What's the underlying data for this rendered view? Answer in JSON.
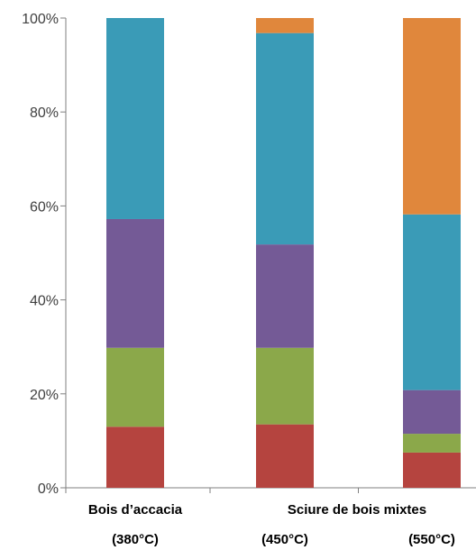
{
  "chart_data": {
    "type": "bar",
    "stacked": true,
    "ylim": [
      0,
      100
    ],
    "yticks": [
      "0%",
      "20%",
      "40%",
      "60%",
      "80%",
      "100%"
    ],
    "grid": false,
    "legend": "none",
    "category_labels_line1": [
      "Bois d’accacia",
      "",
      "Sciure de bois mixtes"
    ],
    "category_labels_line2": [
      "(380°C)",
      "(450°C)",
      "(550°C)"
    ],
    "series": [
      {
        "color": "#b5443f",
        "values": [
          13,
          13.5,
          7.5
        ]
      },
      {
        "color": "#8ba84a",
        "values": [
          16.8,
          16.3,
          4
        ]
      },
      {
        "color": "#745a96",
        "values": [
          27.4,
          22,
          9.3
        ]
      },
      {
        "color": "#3a9bb7",
        "values": [
          42.8,
          45,
          37.4
        ]
      },
      {
        "color": "#e0873c",
        "values": [
          0,
          3.2,
          41.8
        ]
      }
    ]
  }
}
